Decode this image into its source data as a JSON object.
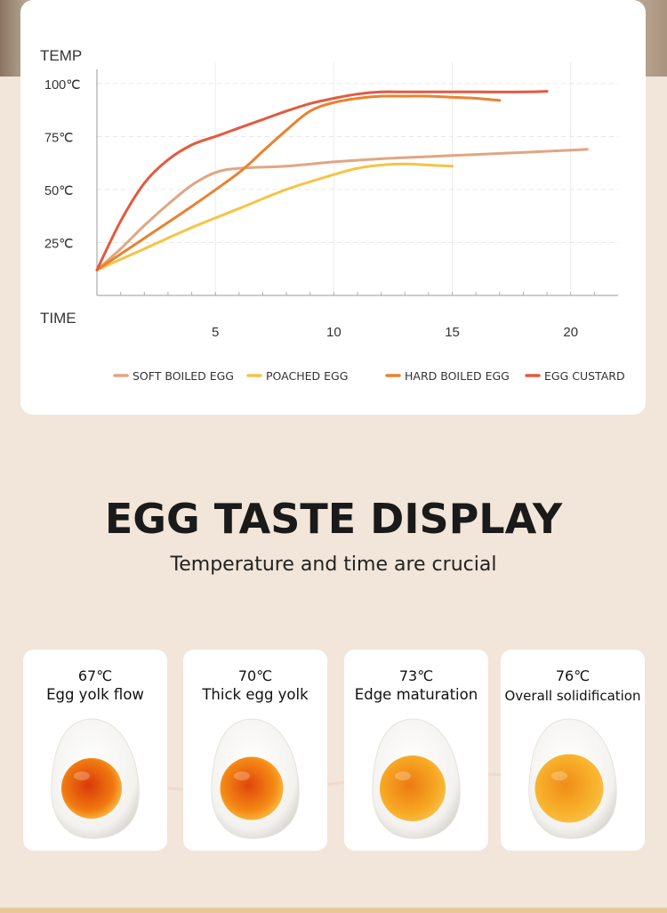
{
  "chart_data": {
    "type": "line",
    "ylabel": "TEMP",
    "xlabel": "TIME",
    "ytick_labels": [
      "100℃",
      "75℃",
      "50℃",
      "25℃"
    ],
    "yticks": [
      100,
      75,
      50,
      25
    ],
    "xticks": [
      5,
      10,
      15,
      20
    ],
    "xlim": [
      0,
      22
    ],
    "ylim": [
      0,
      110
    ],
    "grid": true,
    "legend": "bottom",
    "series": [
      {
        "name": "SOFT BOILED EGG",
        "color": "#e2a583",
        "points": [
          [
            0,
            12
          ],
          [
            1,
            22
          ],
          [
            2,
            33
          ],
          [
            3,
            43
          ],
          [
            4,
            52
          ],
          [
            5,
            58
          ],
          [
            6,
            60
          ],
          [
            8,
            61
          ],
          [
            10,
            63
          ],
          [
            12,
            64.5
          ],
          [
            14,
            65.5
          ],
          [
            16,
            66.5
          ],
          [
            18,
            67.5
          ],
          [
            20,
            68.5
          ],
          [
            20.7,
            69
          ]
        ]
      },
      {
        "name": "POACHED EGG",
        "color": "#f5c445",
        "points": [
          [
            0,
            12
          ],
          [
            2,
            22
          ],
          [
            4,
            32
          ],
          [
            6,
            41
          ],
          [
            8,
            50
          ],
          [
            10,
            57
          ],
          [
            11,
            60
          ],
          [
            12,
            61.5
          ],
          [
            13,
            62
          ],
          [
            14,
            61.5
          ],
          [
            15,
            61
          ]
        ]
      },
      {
        "name": "HARD BOILED EGG",
        "color": "#e9822f",
        "points": [
          [
            0,
            12
          ],
          [
            2,
            27
          ],
          [
            4,
            42
          ],
          [
            6,
            58
          ],
          [
            7,
            68
          ],
          [
            8,
            78
          ],
          [
            9,
            87
          ],
          [
            10,
            91
          ],
          [
            11,
            93
          ],
          [
            12,
            94
          ],
          [
            13,
            94
          ],
          [
            14,
            94
          ],
          [
            15,
            93.5
          ],
          [
            16,
            93
          ],
          [
            17,
            92
          ]
        ]
      },
      {
        "name": "EGG CUSTARD",
        "color": "#e35a3f",
        "points": [
          [
            0,
            12
          ],
          [
            1,
            35
          ],
          [
            2,
            53
          ],
          [
            3,
            64
          ],
          [
            4,
            71
          ],
          [
            5,
            75
          ],
          [
            6,
            79
          ],
          [
            7,
            83
          ],
          [
            8,
            87
          ],
          [
            9,
            90.5
          ],
          [
            10,
            93
          ],
          [
            11,
            95
          ],
          [
            12,
            96
          ],
          [
            13,
            96
          ],
          [
            14,
            96
          ],
          [
            16,
            96
          ],
          [
            18,
            96
          ],
          [
            19,
            96.3
          ]
        ]
      }
    ]
  },
  "section": {
    "title": "EGG TASTE DISPLAY",
    "subtitle": "Temperature and time are crucial"
  },
  "eggs": [
    {
      "temp": "67℃",
      "desc": "Egg yolk flow",
      "yolk": "#f07a10",
      "center": "#d93a08"
    },
    {
      "temp": "70℃",
      "desc": "Thick egg yolk",
      "yolk": "#f58a15",
      "center": "#e0460a"
    },
    {
      "temp": "73℃",
      "desc": "Edge maturation",
      "yolk": "#f7a823",
      "center": "#ec7a12"
    },
    {
      "temp": "76℃",
      "desc": "Overall solidification",
      "yolk": "#f8b22c",
      "center": "#f08c18"
    }
  ]
}
